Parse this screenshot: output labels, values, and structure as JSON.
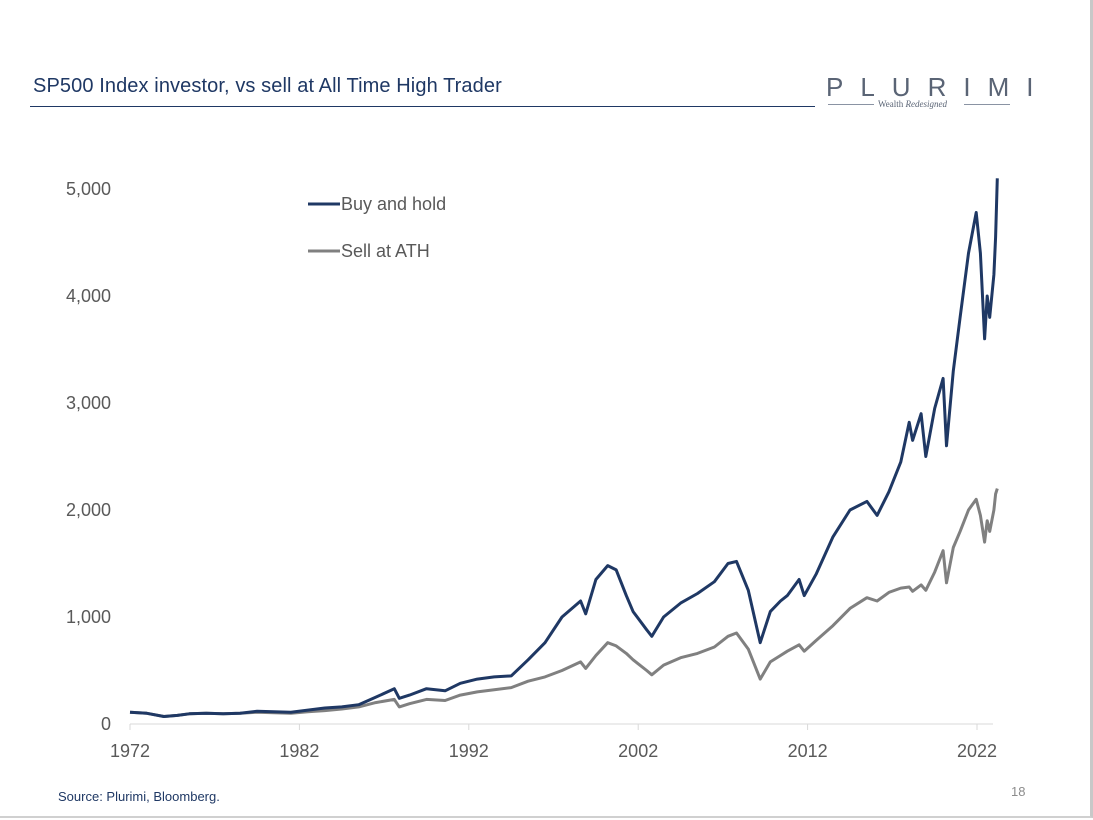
{
  "slide": {
    "title": "SP500 Index investor, vs sell at All Time High Trader",
    "logo": {
      "word": "PLURIMI",
      "tagline_plain": "Wealth ",
      "tagline_italic": "Redesigned"
    },
    "source": "Source: Plurimi, Bloomberg.",
    "page_number": "18"
  },
  "colors": {
    "buy_and_hold": "#1f3864",
    "sell_at_ath": "#808080",
    "axis": "#d9d9d9",
    "title": "#1f3864"
  },
  "chart_data": {
    "type": "line",
    "title": "SP500 Index investor, vs sell at All Time High Trader",
    "xlabel": "",
    "ylabel": "",
    "xlim": [
      1972,
      2023.2
    ],
    "ylim": [
      0,
      5000
    ],
    "yticks": [
      0,
      1000,
      2000,
      3000,
      4000,
      5000
    ],
    "ytick_labels": [
      "0",
      "1,000",
      "2,000",
      "3,000",
      "4,000",
      "5,000"
    ],
    "xticks": [
      1972,
      1982,
      1992,
      2002,
      2012,
      2022
    ],
    "xtick_labels": [
      "1972",
      "1982",
      "1992",
      "2002",
      "2012",
      "2022"
    ],
    "grid": false,
    "legend_position": "top-left",
    "series": [
      {
        "name": "Buy and hold",
        "x": [
          1972.0,
          1973.0,
          1974.0,
          1974.8,
          1975.5,
          1976.5,
          1977.5,
          1978.5,
          1979.5,
          1980.5,
          1981.5,
          1982.5,
          1983.5,
          1984.5,
          1985.5,
          1986.5,
          1987.6,
          1987.9,
          1988.5,
          1989.5,
          1990.6,
          1991.5,
          1992.5,
          1993.5,
          1994.5,
          1995.5,
          1996.5,
          1997.5,
          1998.6,
          1998.9,
          1999.5,
          2000.2,
          2000.7,
          2001.3,
          2001.7,
          2002.5,
          2002.8,
          2003.5,
          2004.5,
          2005.5,
          2006.5,
          2007.3,
          2007.8,
          2008.5,
          2009.2,
          2009.8,
          2010.4,
          2010.8,
          2011.5,
          2011.8,
          2012.5,
          2013.5,
          2014.5,
          2015.5,
          2016.1,
          2016.8,
          2017.5,
          2018.0,
          2018.2,
          2018.7,
          2018.98,
          2019.5,
          2020.0,
          2020.2,
          2020.6,
          2021.0,
          2021.5,
          2021.95,
          2022.2,
          2022.45,
          2022.6,
          2022.75,
          2023.0,
          2023.1,
          2023.2
        ],
        "y": [
          110,
          100,
          70,
          80,
          95,
          100,
          95,
          100,
          120,
          115,
          110,
          130,
          150,
          160,
          180,
          250,
          330,
          240,
          270,
          330,
          310,
          380,
          420,
          440,
          450,
          600,
          760,
          1000,
          1150,
          1030,
          1350,
          1480,
          1440,
          1200,
          1050,
          880,
          820,
          1000,
          1130,
          1220,
          1330,
          1500,
          1520,
          1250,
          760,
          1050,
          1150,
          1200,
          1350,
          1200,
          1400,
          1750,
          2000,
          2080,
          1950,
          2170,
          2450,
          2820,
          2650,
          2900,
          2500,
          2950,
          3230,
          2600,
          3300,
          3800,
          4400,
          4780,
          4400,
          3600,
          4000,
          3800,
          4200,
          4550,
          5100
        ]
      },
      {
        "name": "Sell at ATH",
        "x": [
          1972.0,
          1973.0,
          1974.0,
          1974.8,
          1975.5,
          1976.5,
          1977.5,
          1978.5,
          1979.5,
          1980.5,
          1981.5,
          1982.5,
          1983.5,
          1984.5,
          1985.5,
          1986.5,
          1987.6,
          1987.9,
          1988.5,
          1989.5,
          1990.6,
          1991.5,
          1992.5,
          1993.5,
          1994.5,
          1995.5,
          1996.5,
          1997.5,
          1998.6,
          1998.9,
          1999.5,
          2000.2,
          2000.7,
          2001.3,
          2001.7,
          2002.5,
          2002.8,
          2003.5,
          2004.5,
          2005.5,
          2006.5,
          2007.3,
          2007.8,
          2008.5,
          2009.2,
          2009.8,
          2010.4,
          2010.8,
          2011.5,
          2011.8,
          2012.5,
          2013.5,
          2014.5,
          2015.5,
          2016.1,
          2016.8,
          2017.5,
          2018.0,
          2018.2,
          2018.7,
          2018.98,
          2019.5,
          2020.0,
          2020.2,
          2020.6,
          2021.0,
          2021.5,
          2021.95,
          2022.2,
          2022.45,
          2022.6,
          2022.75,
          2023.0,
          2023.1,
          2023.2
        ],
        "y": [
          110,
          100,
          70,
          80,
          95,
          100,
          95,
          100,
          110,
          105,
          100,
          115,
          125,
          140,
          160,
          200,
          230,
          160,
          190,
          230,
          220,
          270,
          300,
          320,
          340,
          400,
          440,
          500,
          580,
          520,
          640,
          760,
          730,
          660,
          600,
          500,
          460,
          550,
          620,
          660,
          720,
          820,
          850,
          700,
          420,
          580,
          640,
          680,
          740,
          680,
          780,
          920,
          1080,
          1180,
          1150,
          1230,
          1270,
          1280,
          1240,
          1300,
          1250,
          1420,
          1620,
          1320,
          1650,
          1800,
          2000,
          2100,
          1950,
          1700,
          1900,
          1800,
          2000,
          2150,
          2200
        ]
      }
    ]
  }
}
